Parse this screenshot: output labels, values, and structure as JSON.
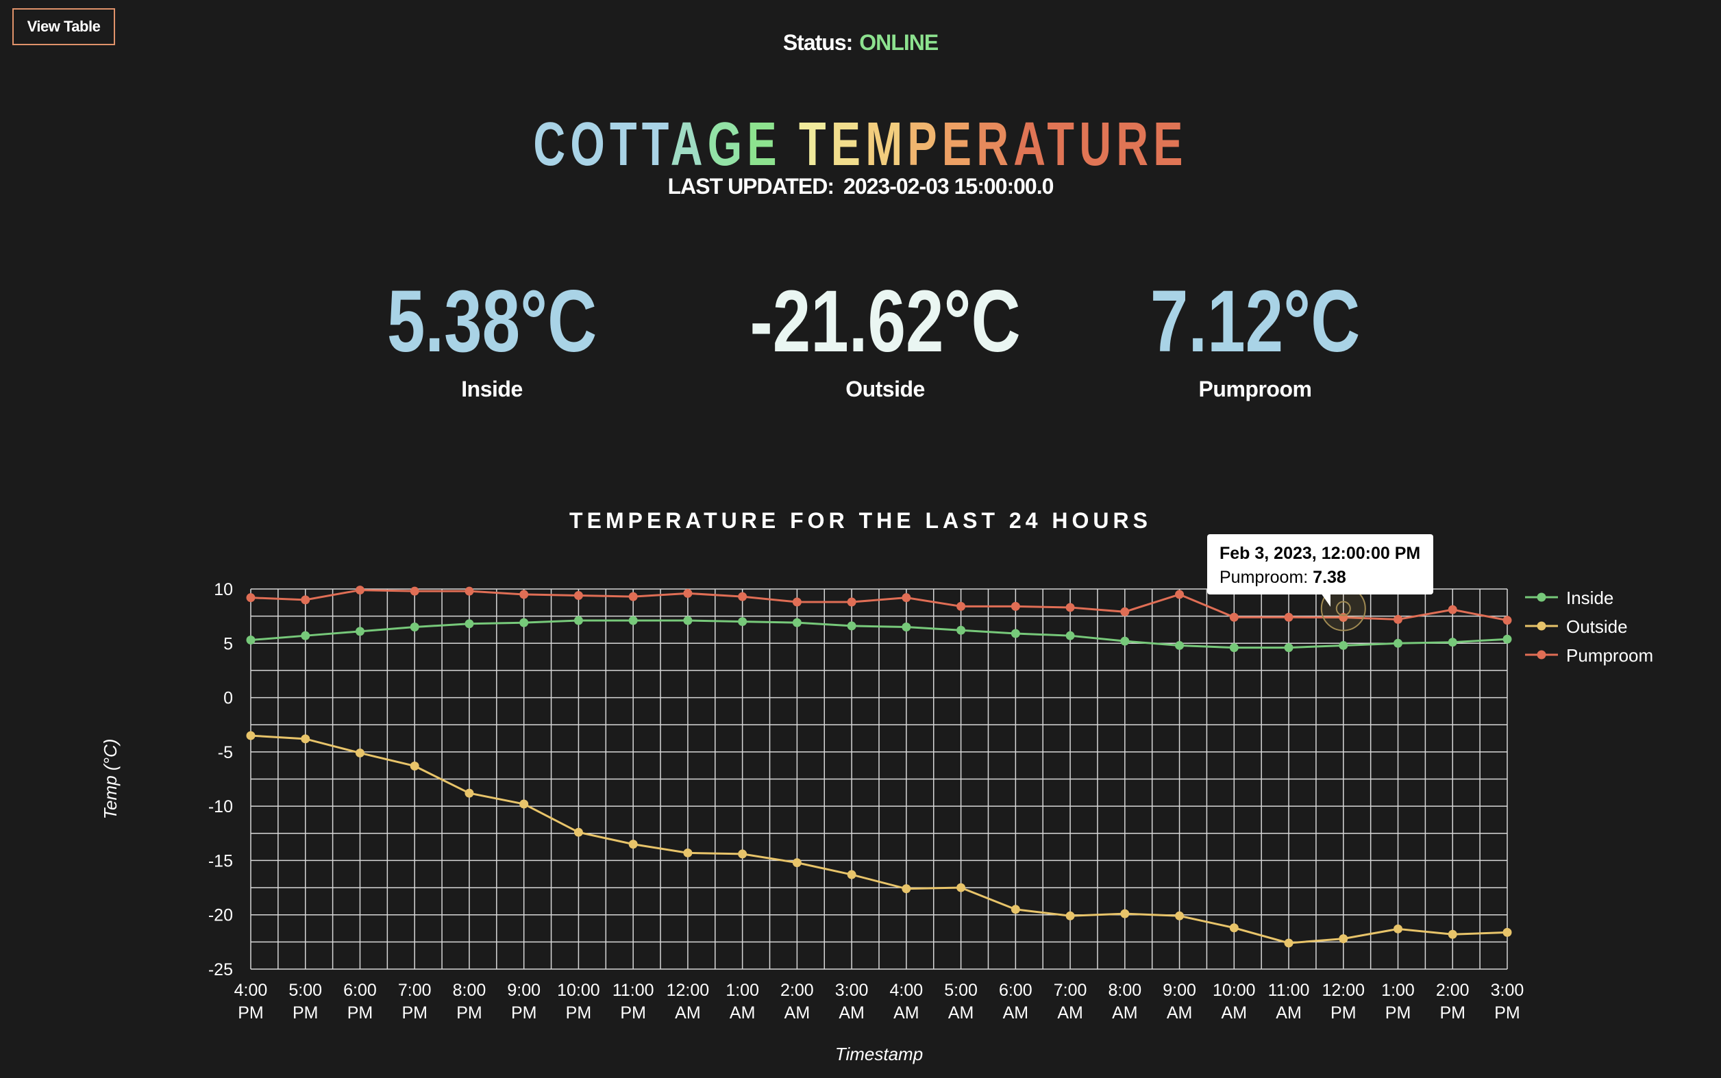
{
  "header": {
    "view_table_label": "View Table",
    "status_label": "Status:",
    "status_value": "ONLINE",
    "status_color": "#8de28f",
    "title": "COTTAGE TEMPERATURE",
    "title_colors": [
      "#a9d3e6",
      "#a9d3e6",
      "#a9d3e6",
      "#a9d3e6",
      "#9fdcc4",
      "#93e2a6",
      "#8de28f",
      "#c6e796",
      "#f0ea9c",
      "#f1dd8d",
      "#f2cd7e",
      "#f0b56f",
      "#eda064",
      "#e68a5c",
      "#e07555",
      "#e07555",
      "#e07555",
      "#e07555",
      "#e07555"
    ],
    "last_updated_label": "LAST UPDATED:",
    "last_updated_value": "2023-02-03 15:00:00.0"
  },
  "readings": [
    {
      "value": "5.38°C",
      "label": "Inside"
    },
    {
      "value": "-21.62°C",
      "label": "Outside"
    },
    {
      "value": "7.12°C",
      "label": "Pumproom"
    }
  ],
  "chart_title": "TEMPERATURE FOR THE LAST 24 HOURS",
  "tooltip": {
    "title": "Feb 3, 2023, 12:00:00 PM",
    "series": "Pumproom:",
    "value": "7.38"
  },
  "chart_data": {
    "type": "line",
    "title": "TEMPERATURE FOR THE LAST 24 HOURS",
    "xlabel": "Timestamp",
    "ylabel": "Temp (°C)",
    "ylim": [
      -25,
      10
    ],
    "yticks": [
      10,
      5,
      0,
      -5,
      -10,
      -15,
      -20,
      -25
    ],
    "grid": true,
    "legend_position": "right",
    "categories": [
      [
        "4:00",
        "PM"
      ],
      [
        "5:00",
        "PM"
      ],
      [
        "6:00",
        "PM"
      ],
      [
        "7:00",
        "PM"
      ],
      [
        "8:00",
        "PM"
      ],
      [
        "9:00",
        "PM"
      ],
      [
        "10:00",
        "PM"
      ],
      [
        "11:00",
        "PM"
      ],
      [
        "12:00",
        "AM"
      ],
      [
        "1:00",
        "AM"
      ],
      [
        "2:00",
        "AM"
      ],
      [
        "3:00",
        "AM"
      ],
      [
        "4:00",
        "AM"
      ],
      [
        "5:00",
        "AM"
      ],
      [
        "6:00",
        "AM"
      ],
      [
        "7:00",
        "AM"
      ],
      [
        "8:00",
        "AM"
      ],
      [
        "9:00",
        "AM"
      ],
      [
        "10:00",
        "AM"
      ],
      [
        "11:00",
        "AM"
      ],
      [
        "12:00",
        "PM"
      ],
      [
        "1:00",
        "PM"
      ],
      [
        "2:00",
        "PM"
      ],
      [
        "3:00",
        "PM"
      ]
    ],
    "series": [
      {
        "name": "Inside",
        "color": "#77c97a",
        "values": [
          5.3,
          5.7,
          6.1,
          6.5,
          6.8,
          6.9,
          7.1,
          7.1,
          7.1,
          7.0,
          6.9,
          6.6,
          6.5,
          6.2,
          5.9,
          5.7,
          5.2,
          4.8,
          4.6,
          4.6,
          4.8,
          5.0,
          5.1,
          5.38
        ]
      },
      {
        "name": "Outside",
        "color": "#e8c46a",
        "values": [
          -3.5,
          -3.8,
          -5.1,
          -6.3,
          -8.8,
          -9.8,
          -12.4,
          -13.5,
          -14.3,
          -14.4,
          -15.2,
          -16.3,
          -17.6,
          -17.5,
          -19.5,
          -20.1,
          -19.9,
          -20.1,
          -21.2,
          -22.6,
          -22.2,
          -21.3,
          -21.8,
          -21.62
        ]
      },
      {
        "name": "Pumproom",
        "color": "#e06e55",
        "values": [
          9.2,
          9.0,
          9.9,
          9.8,
          9.8,
          9.5,
          9.4,
          9.3,
          9.6,
          9.3,
          8.8,
          8.8,
          9.2,
          8.4,
          8.4,
          8.3,
          7.9,
          9.5,
          7.4,
          7.4,
          7.38,
          7.2,
          8.1,
          7.12
        ]
      }
    ]
  }
}
